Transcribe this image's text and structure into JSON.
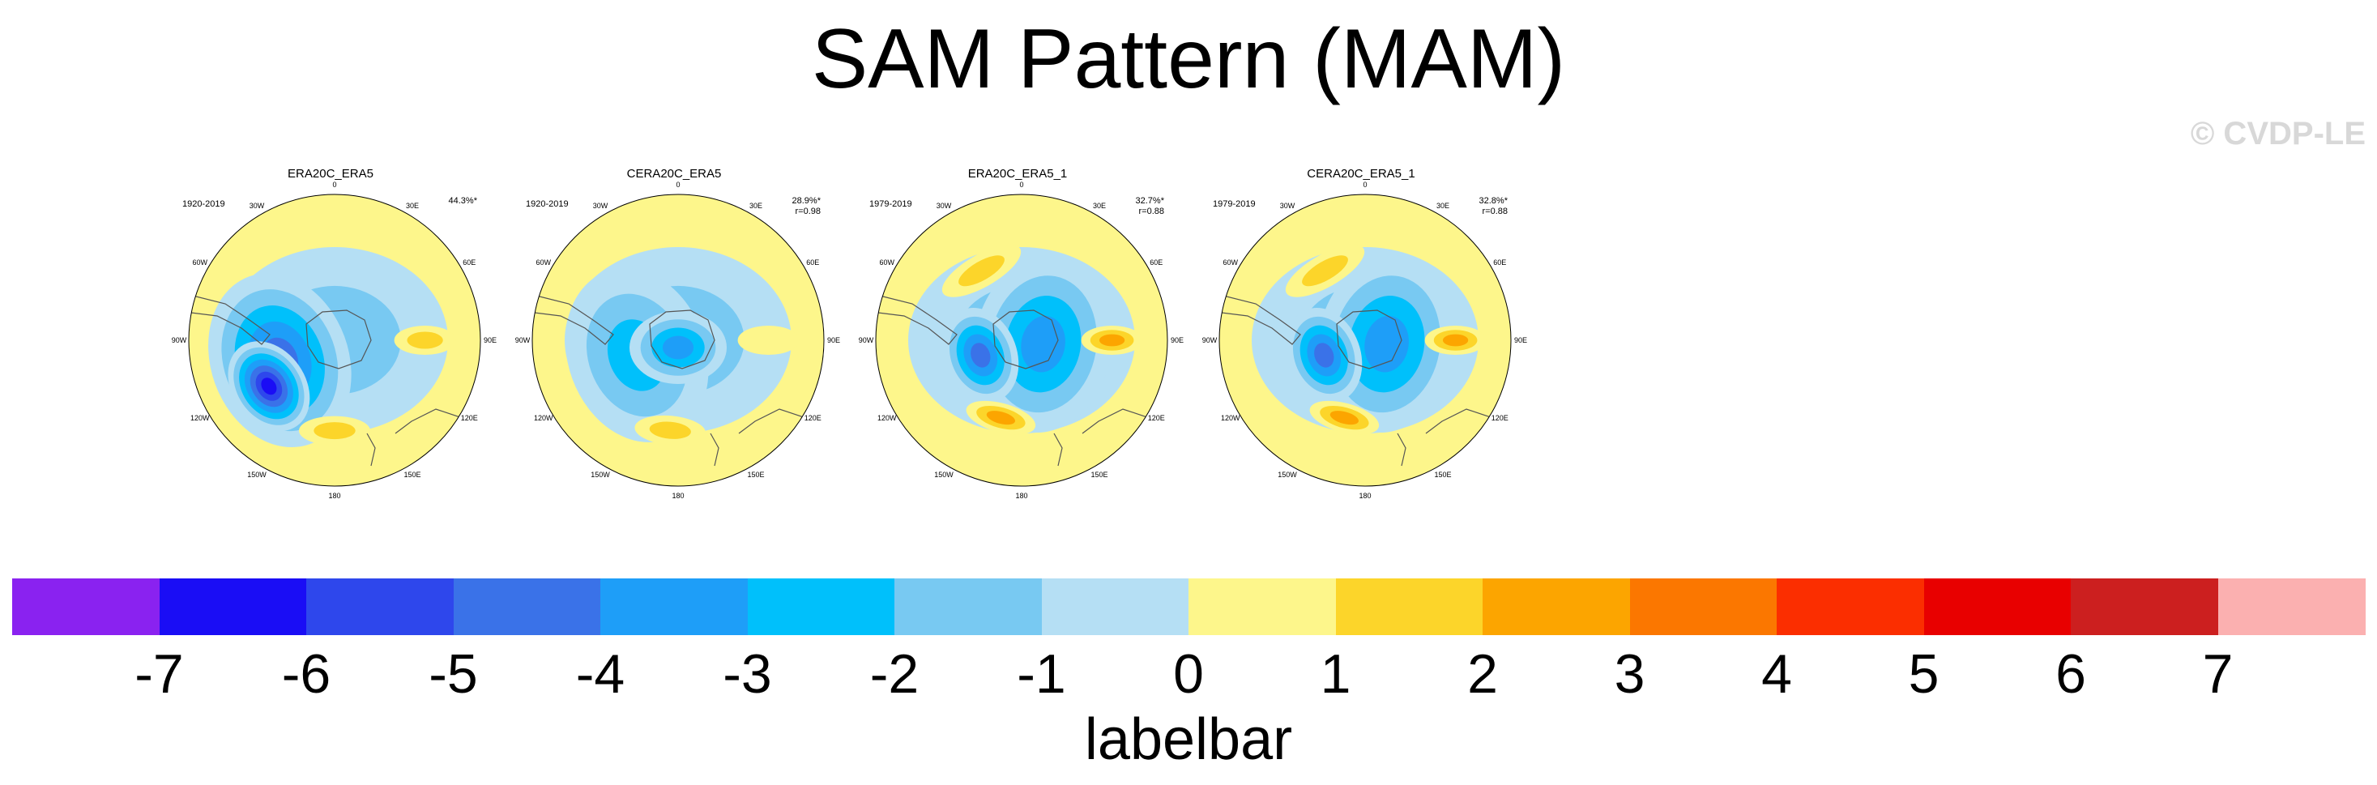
{
  "title": "SAM Pattern (MAM)",
  "watermark": "© CVDP-LE",
  "longitude_labels": [
    "0",
    "30E",
    "60E",
    "90E",
    "120E",
    "150E",
    "180",
    "150W",
    "120W",
    "90W",
    "60W",
    "30W"
  ],
  "panels": [
    {
      "title": "ERA20C_ERA5",
      "period": "1920-2019",
      "variance": "44.3%*",
      "correlation": "",
      "features": {
        "low_center": [
          235,
          0.55,
          -6.5
        ],
        "trough_center": [
          250,
          0.4,
          -4.5
        ],
        "ridge_east": [
          90,
          0.62,
          2
        ],
        "ridge_south": [
          180,
          0.62,
          1.5
        ]
      }
    },
    {
      "title": "CERA20C_ERA5",
      "period": "1920-2019",
      "variance": "28.9%*",
      "correlation": "r=0.98",
      "features": {
        "low_center": [
          180,
          0.05,
          -4
        ],
        "trough_center": [
          250,
          0.3,
          -3
        ],
        "ridge_east": [
          90,
          0.62,
          0.5
        ],
        "ridge_south": [
          185,
          0.62,
          1.5
        ]
      }
    },
    {
      "title": "ERA20C_ERA5_1",
      "period": "1979-2019",
      "variance": "32.7%*",
      "correlation": "r=0.88",
      "features": {
        "low_center": [
          250,
          0.3,
          -4.5
        ],
        "trough_center": [
          100,
          0.15,
          -3.5
        ],
        "ridge_east": [
          90,
          0.62,
          3
        ],
        "ridge_south": [
          195,
          0.55,
          3
        ],
        "ridge_west": [
          330,
          0.55,
          2
        ]
      }
    },
    {
      "title": "CERA20C_ERA5_1",
      "period": "1979-2019",
      "variance": "32.8%*",
      "correlation": "r=0.88",
      "features": {
        "low_center": [
          250,
          0.3,
          -4.5
        ],
        "trough_center": [
          100,
          0.15,
          -3.5
        ],
        "ridge_east": [
          90,
          0.62,
          2.5
        ],
        "ridge_south": [
          195,
          0.55,
          3
        ],
        "ridge_west": [
          330,
          0.55,
          2
        ]
      }
    }
  ],
  "colorbar": {
    "label": "labelbar",
    "ticks": [
      "-7",
      "-6",
      "-5",
      "-4",
      "-3",
      "-2",
      "-1",
      "0",
      "1",
      "2",
      "3",
      "4",
      "5",
      "6",
      "7"
    ],
    "colors": [
      "#8a22f0",
      "#1a0df5",
      "#2e47ec",
      "#3a72e8",
      "#1e9ef8",
      "#00c0fb",
      "#78c9f2",
      "#b5dff4",
      "#fdf68b",
      "#fcd52a",
      "#fca500",
      "#fb7700",
      "#fb2e00",
      "#e80000",
      "#cc1f1f",
      "#fbb0b0"
    ]
  }
}
